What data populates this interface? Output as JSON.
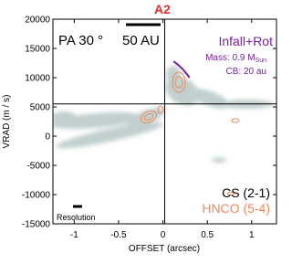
{
  "chart_data": {
    "type": "line",
    "title": "A2",
    "x_label": "OFFSET (arcsec)",
    "y_label": "VRAD (m / s)",
    "xlim": [
      -1.24,
      1.28
    ],
    "ylim": [
      -15000,
      20000
    ],
    "xticks": [
      -1,
      -0.5,
      0,
      0.5,
      1
    ],
    "yticks": [
      -15000,
      -10000,
      -5000,
      0,
      5000,
      10000,
      15000,
      20000
    ],
    "reference_lines": {
      "x": 0.02,
      "y": 5500
    },
    "series": [
      {
        "name": "Infall+Rot",
        "color": "#7a1fa2",
        "x": [
          0.12,
          0.17,
          0.22,
          0.26,
          0.3
        ],
        "values": [
          12800,
          12200,
          11500,
          10800,
          10000
        ]
      }
    ],
    "annotations": {
      "position_angle": "PA 30 °",
      "scale": "50 AU",
      "mass_label": "Mass: 0.9 M",
      "mass_sub": "Sun",
      "cb_label": "CB: 20 au",
      "cs_label": "CS (2-1)",
      "hnco_label": "HNCO (5-4)",
      "resolution": "Resolution"
    }
  }
}
